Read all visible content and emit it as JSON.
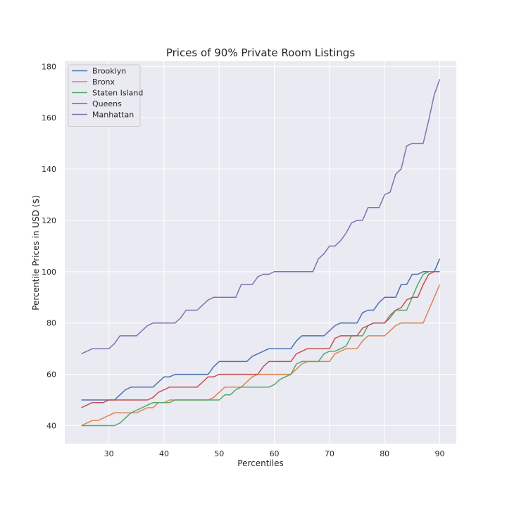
{
  "chart_data": {
    "type": "line",
    "title": "Prices of 90% Private Room Listings",
    "xlabel": "Percentiles",
    "ylabel": "Percentile Prices in USD ($)",
    "xlim": [
      22,
      93
    ],
    "ylim": [
      33,
      182
    ],
    "xticks": [
      30,
      40,
      50,
      60,
      70,
      80,
      90
    ],
    "yticks": [
      40,
      60,
      80,
      100,
      120,
      140,
      160,
      180
    ],
    "grid": true,
    "legend_position": "top-left",
    "x": [
      25,
      26,
      27,
      28,
      29,
      30,
      31,
      32,
      33,
      34,
      35,
      36,
      37,
      38,
      39,
      40,
      41,
      42,
      43,
      44,
      45,
      46,
      47,
      48,
      49,
      50,
      51,
      52,
      53,
      54,
      55,
      56,
      57,
      58,
      59,
      60,
      61,
      62,
      63,
      64,
      65,
      66,
      67,
      68,
      69,
      70,
      71,
      72,
      73,
      74,
      75,
      76,
      77,
      78,
      79,
      80,
      81,
      82,
      83,
      84,
      85,
      86,
      87,
      88,
      89,
      90
    ],
    "series": [
      {
        "name": "Brooklyn",
        "color": "#4c72b0",
        "values": [
          50,
          50,
          50,
          50,
          50,
          50,
          50,
          52,
          54,
          55,
          55,
          55,
          55,
          55,
          57,
          59,
          59,
          60,
          60,
          60,
          60,
          60,
          60,
          60,
          63,
          65,
          65,
          65,
          65,
          65,
          65,
          67,
          68,
          69,
          70,
          70,
          70,
          70,
          70,
          73,
          75,
          75,
          75,
          75,
          75,
          77,
          79,
          80,
          80,
          80,
          80,
          84,
          85,
          85,
          88,
          90,
          90,
          90,
          95,
          95,
          99,
          99,
          100,
          100,
          100,
          105
        ]
      },
      {
        "name": "Bronx",
        "color": "#dd8452",
        "values": [
          40,
          41,
          42,
          42,
          43,
          44,
          45,
          45,
          45,
          45,
          45,
          46,
          47,
          47,
          49,
          49,
          50,
          50,
          50,
          50,
          50,
          50,
          50,
          50,
          51,
          53,
          55,
          55,
          55,
          55,
          57,
          59,
          60,
          60,
          60,
          60,
          60,
          60,
          60,
          62,
          64,
          65,
          65,
          65,
          65,
          65,
          68,
          69,
          70,
          70,
          70,
          73,
          75,
          75,
          75,
          75,
          77,
          79,
          80,
          80,
          80,
          80,
          80,
          85,
          90,
          95
        ]
      },
      {
        "name": "Staten Island",
        "color": "#55a868",
        "values": [
          40,
          40,
          40,
          40,
          40,
          40,
          40,
          41,
          43,
          45,
          46,
          47,
          48,
          49,
          49,
          49,
          49,
          50,
          50,
          50,
          50,
          50,
          50,
          50,
          50,
          50,
          52,
          52,
          54,
          55,
          55,
          55,
          55,
          55,
          55,
          56,
          58,
          59,
          60,
          64,
          65,
          65,
          65,
          65,
          68,
          69,
          69,
          70,
          71,
          75,
          75,
          75,
          79,
          80,
          80,
          80,
          82,
          85,
          85,
          85,
          90,
          95,
          99,
          100,
          100,
          100
        ]
      },
      {
        "name": "Queens",
        "color": "#c44e52",
        "values": [
          47,
          48,
          49,
          49,
          49,
          50,
          50,
          50,
          50,
          50,
          50,
          50,
          50,
          51,
          53,
          54,
          55,
          55,
          55,
          55,
          55,
          55,
          57,
          59,
          59,
          60,
          60,
          60,
          60,
          60,
          60,
          60,
          60,
          63,
          65,
          65,
          65,
          65,
          65,
          68,
          69,
          70,
          70,
          70,
          70,
          70,
          74,
          75,
          75,
          75,
          75,
          78,
          79,
          80,
          80,
          80,
          83,
          85,
          86,
          89,
          90,
          90,
          95,
          99,
          100,
          100
        ]
      },
      {
        "name": "Manhattan",
        "color": "#8172b3",
        "values": [
          68,
          69,
          70,
          70,
          70,
          70,
          72,
          75,
          75,
          75,
          75,
          77,
          79,
          80,
          80,
          80,
          80,
          80,
          82,
          85,
          85,
          85,
          87,
          89,
          90,
          90,
          90,
          90,
          90,
          95,
          95,
          95,
          98,
          99,
          99,
          100,
          100,
          100,
          100,
          100,
          100,
          100,
          100,
          105,
          107,
          110,
          110,
          112,
          115,
          119,
          120,
          120,
          125,
          125,
          125,
          130,
          131,
          138,
          140,
          149,
          150,
          150,
          150,
          159,
          169,
          175
        ]
      }
    ]
  }
}
